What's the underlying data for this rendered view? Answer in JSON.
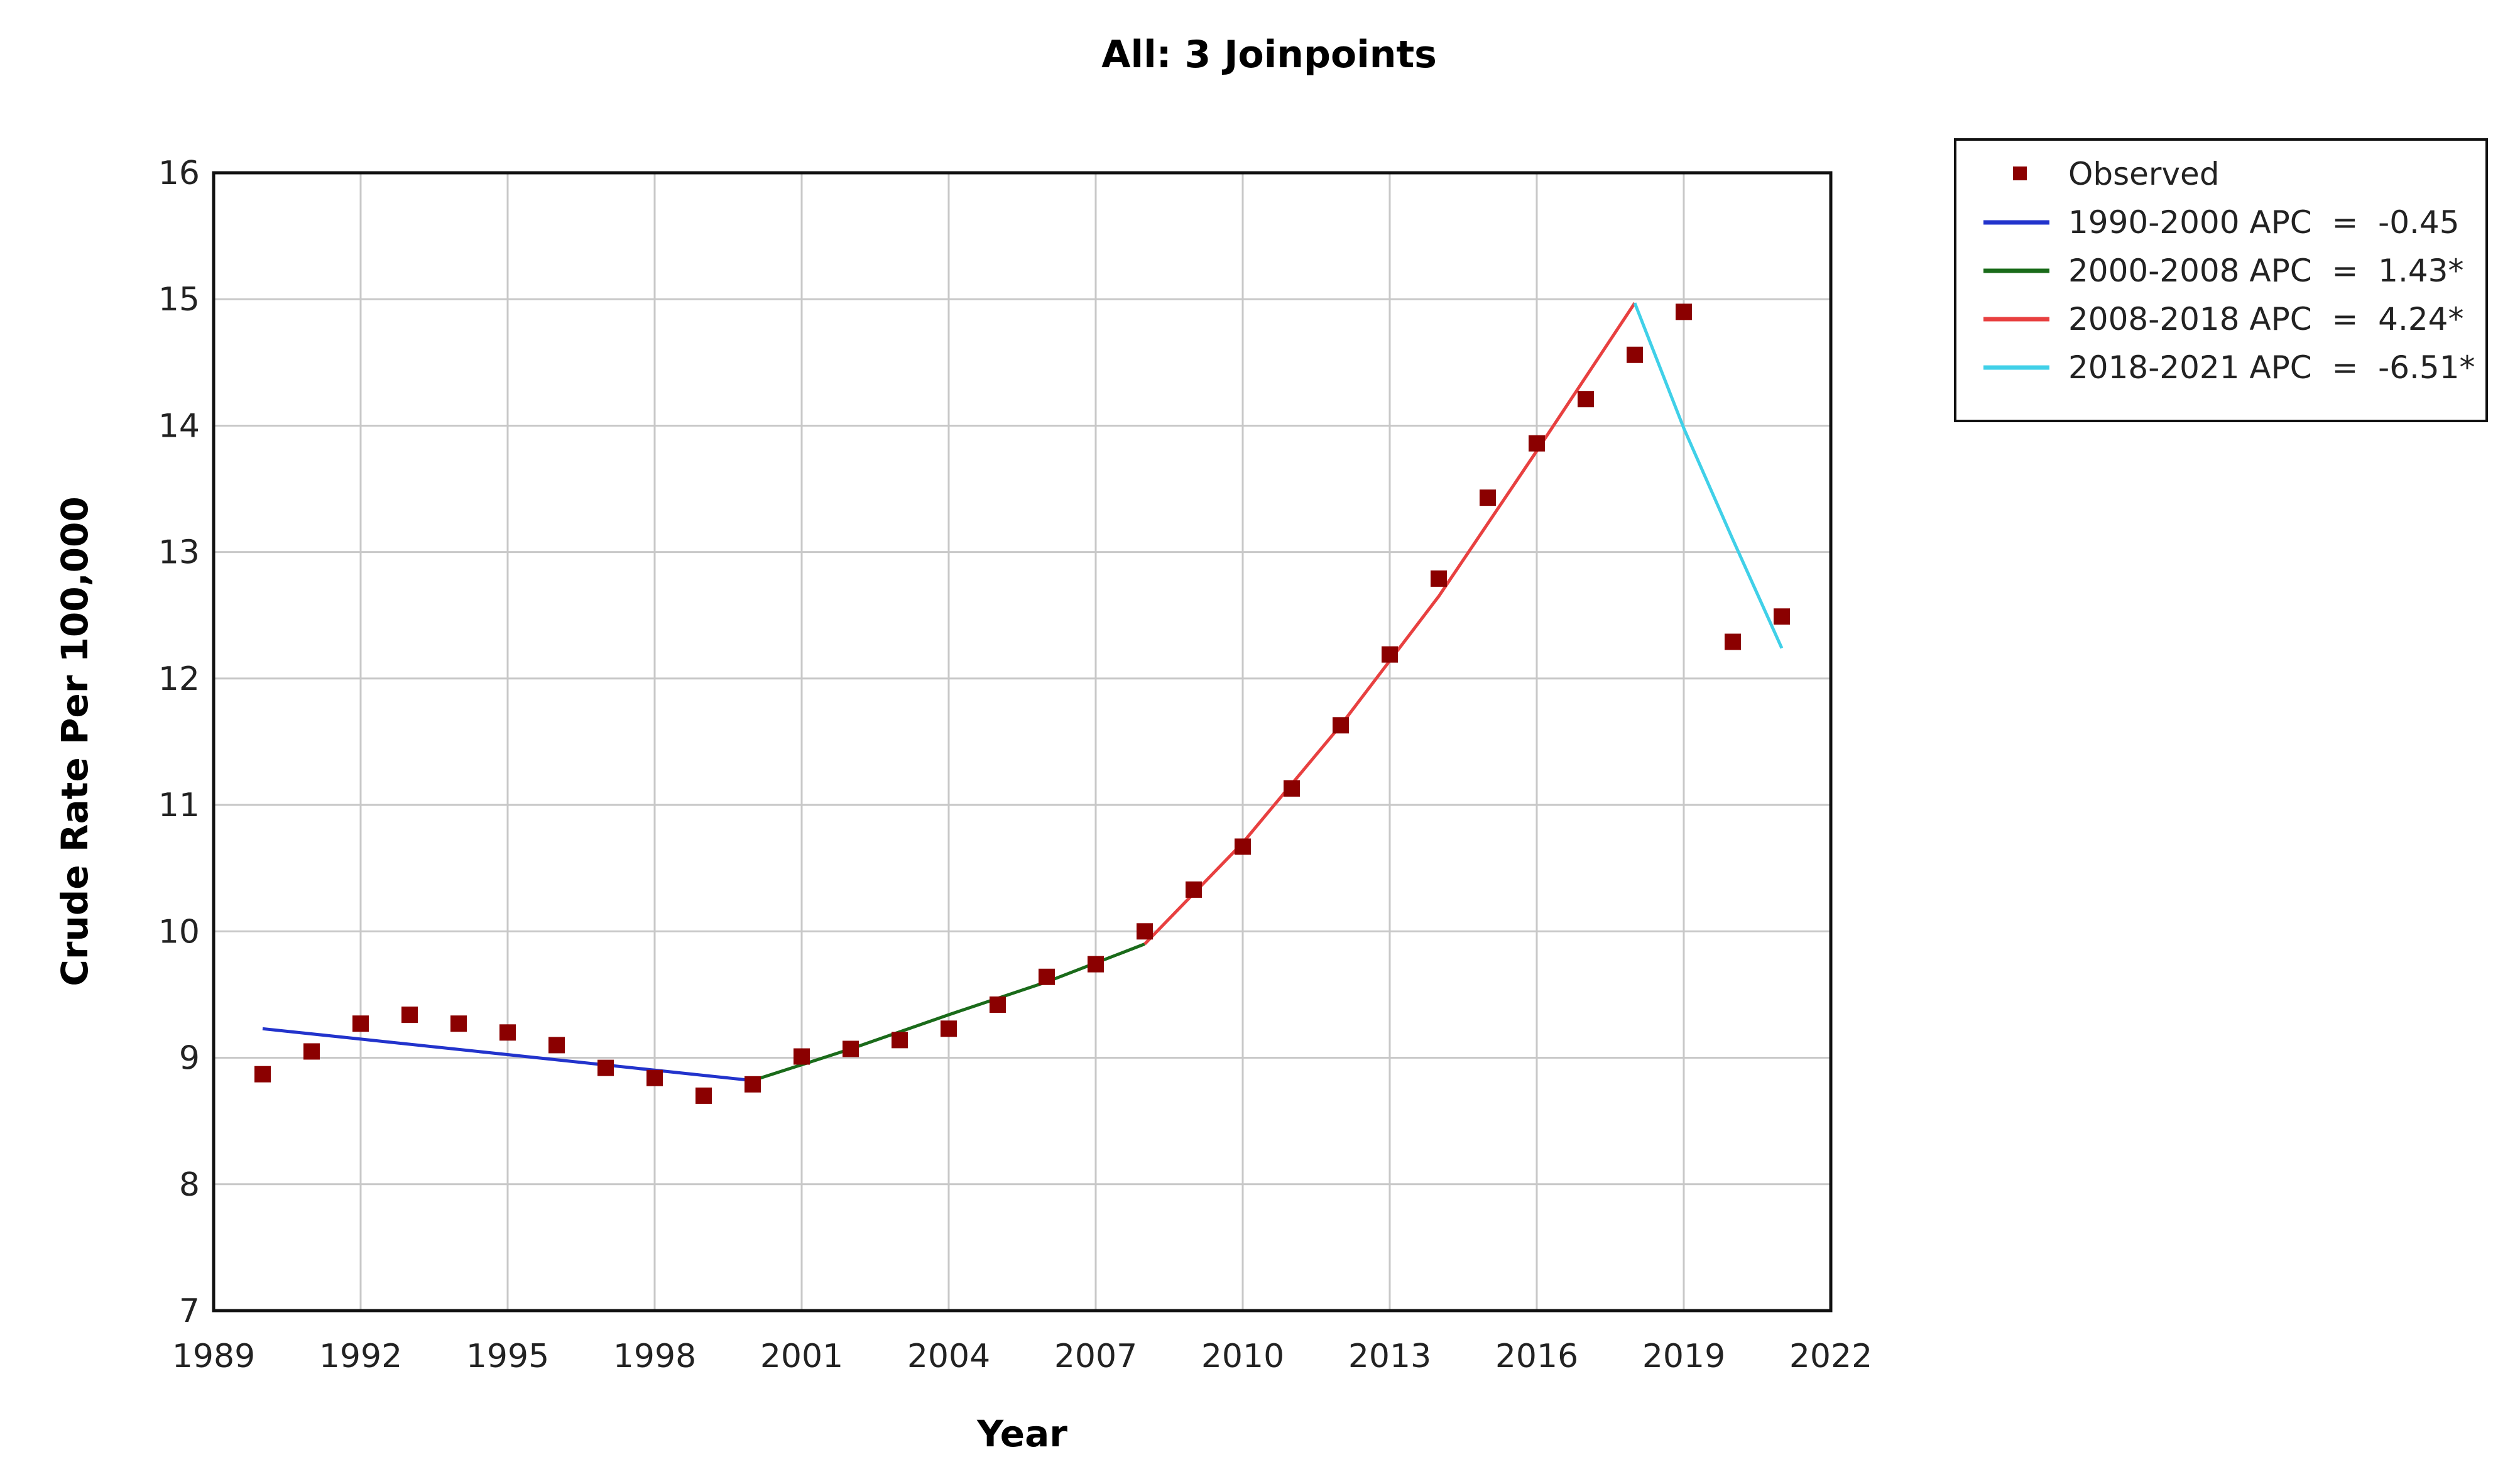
{
  "chart_data": {
    "type": "line",
    "title": "All: 3 Joinpoints",
    "xlabel": "Year",
    "ylabel": "Crude Rate Per 100,000",
    "xlim": [
      1989,
      2022
    ],
    "ylim": [
      7,
      16
    ],
    "x_ticks": [
      1989,
      1992,
      1995,
      1998,
      2001,
      2004,
      2007,
      2010,
      2013,
      2016,
      2019,
      2022
    ],
    "y_ticks": [
      7,
      8,
      9,
      10,
      11,
      12,
      13,
      14,
      15,
      16
    ],
    "grid": true,
    "legend_position": "top-right, outside plot",
    "observed": {
      "name": "Observed",
      "color": "#8b0000",
      "x": [
        1990,
        1991,
        1992,
        1993,
        1994,
        1995,
        1996,
        1997,
        1998,
        1999,
        2000,
        2001,
        2002,
        2003,
        2004,
        2005,
        2006,
        2007,
        2008,
        2009,
        2010,
        2011,
        2012,
        2013,
        2014,
        2015,
        2016,
        2017,
        2018,
        2019,
        2020,
        2021
      ],
      "y": [
        8.87,
        9.05,
        9.27,
        9.34,
        9.27,
        9.2,
        9.1,
        8.92,
        8.84,
        8.7,
        8.79,
        9.01,
        9.07,
        9.14,
        9.23,
        9.42,
        9.64,
        9.74,
        10.0,
        10.33,
        10.67,
        11.13,
        11.63,
        12.19,
        12.79,
        13.43,
        13.86,
        14.21,
        14.56,
        14.9,
        12.29,
        12.49
      ]
    },
    "series": [
      {
        "name": "1990-2000 APC  =  -0.45",
        "color": "#2233cc",
        "x": [
          1990,
          2000
        ],
        "y": [
          9.23,
          8.82
        ]
      },
      {
        "name": "2000-2008 APC  =  1.43*",
        "color": "#1a6b1a",
        "x": [
          2000,
          2002,
          2004,
          2006,
          2008
        ],
        "y": [
          8.82,
          9.07,
          9.34,
          9.6,
          9.9
        ]
      },
      {
        "name": "2008-2018 APC  =  4.24*",
        "color": "#e84040",
        "x": [
          2008,
          2010,
          2012,
          2014,
          2016,
          2018
        ],
        "y": [
          9.9,
          10.7,
          11.63,
          12.65,
          13.8,
          14.97
        ]
      },
      {
        "name": "2018-2021 APC  =  -6.51*",
        "color": "#40d0e8",
        "x": [
          2018,
          2019,
          2020,
          2021
        ],
        "y": [
          14.97,
          13.98,
          13.1,
          12.24
        ]
      }
    ]
  }
}
